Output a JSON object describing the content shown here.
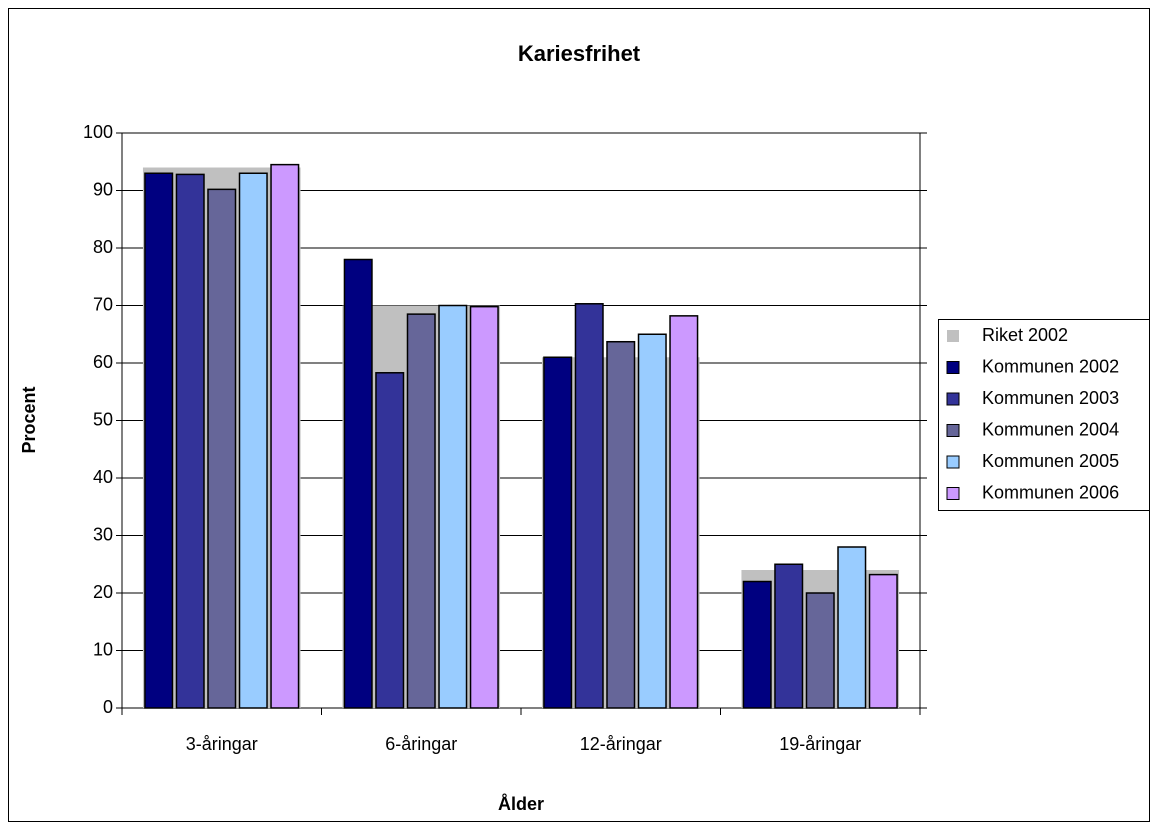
{
  "chart_data": {
    "type": "bar",
    "title": "Kariesfrihet",
    "x_label": "Ålder",
    "y_label": "Procent",
    "categories": [
      "3-åringar",
      "6-åringar",
      "12-åringar",
      "19-åringar"
    ],
    "background_series": {
      "name": "Riket 2002",
      "color": "#c0c0c0",
      "values": [
        94,
        70,
        61,
        24
      ]
    },
    "series": [
      {
        "name": "Kommunen 2002",
        "color": "#000080",
        "values": [
          93,
          78,
          61,
          22
        ]
      },
      {
        "name": "Kommunen 2003",
        "color": "#333399",
        "values": [
          92.8,
          58.3,
          70.3,
          25
        ]
      },
      {
        "name": "Kommunen 2004",
        "color": "#666699",
        "values": [
          90.2,
          68.5,
          63.7,
          20
        ]
      },
      {
        "name": "Kommunen 2005",
        "color": "#99ccff",
        "values": [
          93,
          70,
          65,
          28
        ]
      },
      {
        "name": "Kommunen 2006",
        "color": "#cc99ff",
        "values": [
          94.5,
          69.8,
          68.2,
          23.2
        ]
      }
    ],
    "ylim": [
      0,
      100
    ],
    "yticks": [
      0,
      10,
      20,
      30,
      40,
      50,
      60,
      70,
      80,
      90,
      100
    ],
    "grid": true,
    "legend": "right"
  }
}
